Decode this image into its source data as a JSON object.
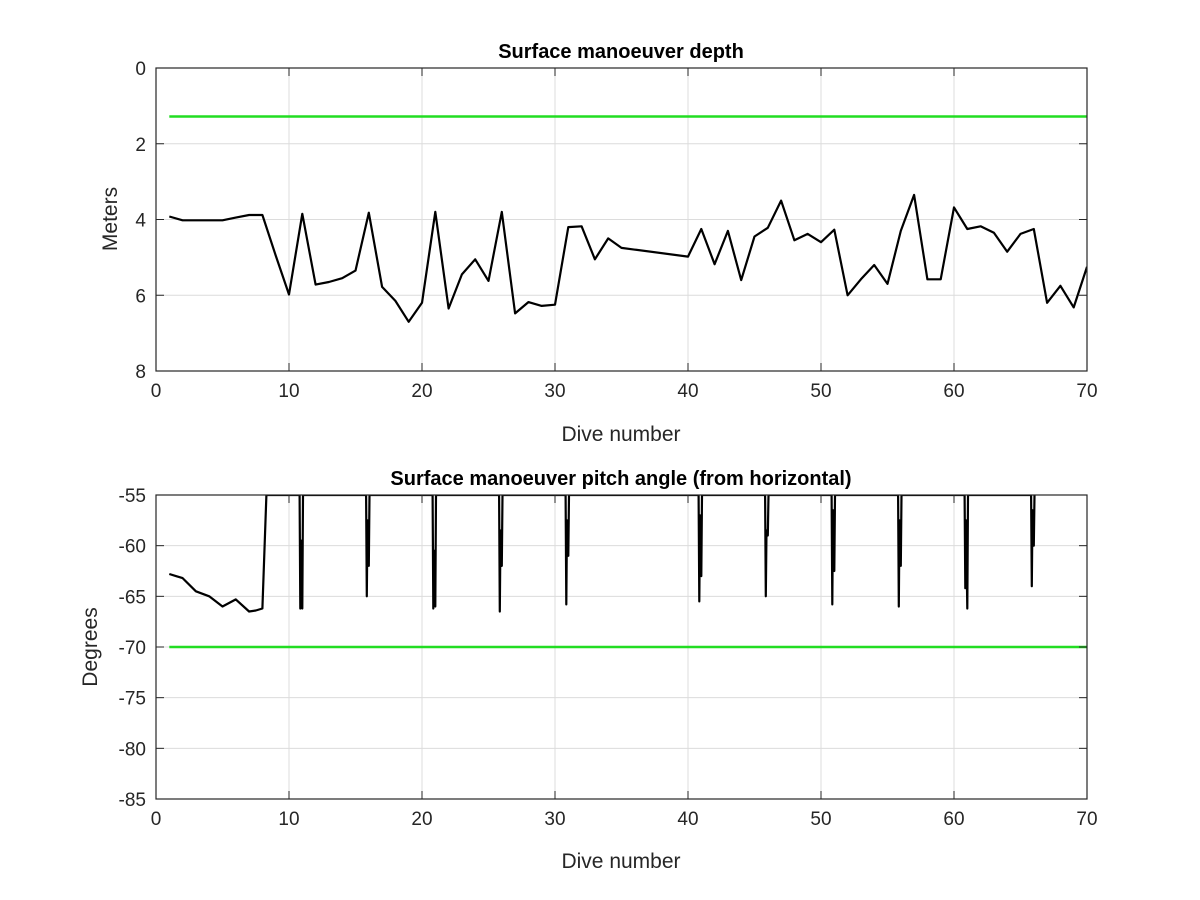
{
  "chart_data": [
    {
      "type": "line",
      "title": "Surface manoeuver depth",
      "xlabel": "Dive number",
      "ylabel": "Meters",
      "xlim": [
        0,
        70
      ],
      "ylim": [
        0,
        8
      ],
      "y_reversed": true,
      "grid": true,
      "xticks": [
        "0",
        "10",
        "20",
        "30",
        "40",
        "50",
        "60",
        "70"
      ],
      "yticks": [
        "0",
        "2",
        "4",
        "6",
        "8"
      ],
      "series": [
        {
          "color": "#000000",
          "x": [
            1,
            2,
            3,
            4,
            5,
            6,
            7,
            8,
            9,
            10,
            11,
            12,
            13,
            14,
            15,
            16,
            17,
            18,
            19,
            20,
            21,
            22,
            23,
            24,
            25,
            26,
            27,
            28,
            29,
            30,
            31,
            32,
            33,
            34,
            35,
            40,
            41,
            42,
            43,
            44,
            45,
            46,
            47,
            48,
            49,
            50,
            51,
            52,
            53,
            54,
            55,
            56,
            57,
            58,
            59,
            60,
            61,
            62,
            63,
            64,
            65,
            66,
            67,
            68,
            69,
            70
          ],
          "y": [
            3.92,
            4.02,
            4.02,
            4.02,
            4.02,
            3.95,
            3.88,
            3.88,
            4.95,
            5.98,
            3.85,
            5.72,
            5.65,
            5.55,
            5.35,
            3.82,
            5.78,
            6.15,
            6.7,
            6.2,
            3.8,
            6.35,
            5.45,
            5.05,
            5.62,
            3.8,
            6.48,
            6.18,
            6.28,
            6.25,
            4.2,
            4.18,
            5.05,
            4.5,
            4.75,
            4.98,
            4.25,
            5.18,
            4.3,
            5.6,
            4.45,
            4.22,
            3.5,
            4.55,
            4.38,
            4.6,
            4.27,
            6.0,
            5.58,
            5.2,
            5.7,
            4.3,
            3.35,
            5.58,
            5.58,
            3.68,
            4.25,
            4.18,
            4.35,
            4.85,
            4.38,
            4.25,
            6.2,
            5.75,
            6.32,
            5.25
          ]
        },
        {
          "color": "#22dd22",
          "x": [
            1,
            70
          ],
          "y": [
            1.28,
            1.28
          ]
        }
      ]
    },
    {
      "type": "line",
      "title": "Surface manoeuver pitch angle (from horizontal)",
      "xlabel": "Dive number",
      "ylabel": "Degrees",
      "xlim": [
        0,
        70
      ],
      "ylim": [
        -85,
        -55
      ],
      "grid": true,
      "xticks": [
        "0",
        "10",
        "20",
        "30",
        "40",
        "50",
        "60",
        "70"
      ],
      "yticks": [
        "-55",
        "-60",
        "-65",
        "-70",
        "-75",
        "-80",
        "-85"
      ],
      "series": [
        {
          "color": "#000000",
          "x": [
            1,
            1.5,
            2,
            3,
            4,
            5,
            6,
            7,
            7.5,
            8,
            8.3,
            10.8,
            10.85,
            10.9,
            11,
            11.05,
            15.8,
            15.85,
            15.9,
            16,
            16.05,
            20.8,
            20.85,
            20.9,
            21,
            21.05,
            25.8,
            25.85,
            25.9,
            26,
            26.05,
            30.8,
            30.85,
            30.9,
            31,
            31.05,
            40.8,
            40.85,
            40.9,
            41,
            41.05,
            45.8,
            45.85,
            45.9,
            46,
            46.05,
            50.8,
            50.85,
            50.9,
            51,
            51.05,
            55.8,
            55.85,
            55.9,
            56,
            56.05,
            60.8,
            60.85,
            60.9,
            61,
            61.05,
            65.8,
            65.85,
            65.9,
            66,
            66.05
          ],
          "y": [
            -62.8,
            -63,
            -63.2,
            -64.5,
            -65,
            -66,
            -65.3,
            -66.5,
            -66.4,
            -66.2,
            -55,
            -55,
            -66.2,
            -59.5,
            -66.2,
            -55,
            -55,
            -65,
            -57.5,
            -62,
            -55,
            -55,
            -66.2,
            -60.5,
            -66,
            -55,
            -55,
            -66.5,
            -58.5,
            -62,
            -55,
            -55,
            -65.8,
            -57.5,
            -61,
            -55,
            -55,
            -65.5,
            -57,
            -63,
            -55,
            -55,
            -65,
            -58.5,
            -59,
            -55,
            -55,
            -65.8,
            -56.5,
            -62.5,
            -55,
            -55,
            -66,
            -57.5,
            -62,
            -55,
            -55,
            -64.2,
            -57.5,
            -66.2,
            -55,
            -55,
            -64,
            -56.5,
            -60,
            -55
          ]
        },
        {
          "color": "#22dd22",
          "x": [
            1,
            70
          ],
          "y": [
            -70,
            -70
          ]
        }
      ]
    }
  ]
}
